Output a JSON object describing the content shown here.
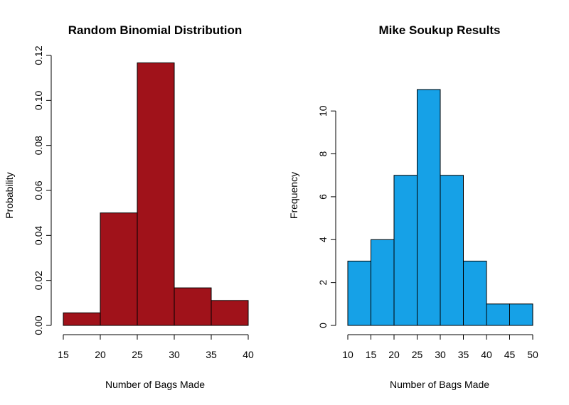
{
  "chart_data": [
    {
      "type": "bar",
      "title": "Random Binomial Distribution",
      "xlabel": "Number of Bags Made",
      "ylabel": "Probability",
      "bins": [
        [
          15,
          20
        ],
        [
          20,
          25
        ],
        [
          25,
          30
        ],
        [
          30,
          35
        ],
        [
          35,
          40
        ]
      ],
      "values": [
        0.0056,
        0.05,
        0.1167,
        0.0167,
        0.0111
      ],
      "xlim": [
        15,
        40
      ],
      "ylim": [
        0,
        0.12
      ],
      "xticks": [
        15,
        20,
        25,
        30,
        35,
        40
      ],
      "yticks": [
        0,
        0.02,
        0.04,
        0.06,
        0.08,
        0.1,
        0.12
      ],
      "xtick_labels": [
        "15",
        "20",
        "25",
        "30",
        "35",
        "40"
      ],
      "ytick_labels": [
        "0.00",
        "0.02",
        "0.04",
        "0.06",
        "0.08",
        "0.10",
        "0.12"
      ],
      "bar_color": "#a0121a",
      "grid": false
    },
    {
      "type": "bar",
      "title": "Mike Soukup Results",
      "xlabel": "Number of Bags Made",
      "ylabel": "Frequency",
      "bins": [
        [
          10,
          15
        ],
        [
          15,
          20
        ],
        [
          20,
          25
        ],
        [
          25,
          30
        ],
        [
          30,
          35
        ],
        [
          35,
          40
        ],
        [
          40,
          45
        ],
        [
          45,
          50
        ]
      ],
      "values": [
        3,
        4,
        7,
        11,
        7,
        3,
        1,
        1
      ],
      "xlim": [
        10,
        50
      ],
      "ylim": [
        0,
        11
      ],
      "xticks": [
        10,
        15,
        20,
        25,
        30,
        35,
        40,
        45,
        50
      ],
      "yticks": [
        0,
        2,
        4,
        6,
        8,
        10
      ],
      "xtick_labels": [
        "10",
        "15",
        "20",
        "25",
        "30",
        "35",
        "40",
        "45",
        "50"
      ],
      "ytick_labels": [
        "0",
        "2",
        "4",
        "6",
        "8",
        "10"
      ],
      "bar_color": "#16a1e7",
      "grid": false
    }
  ]
}
